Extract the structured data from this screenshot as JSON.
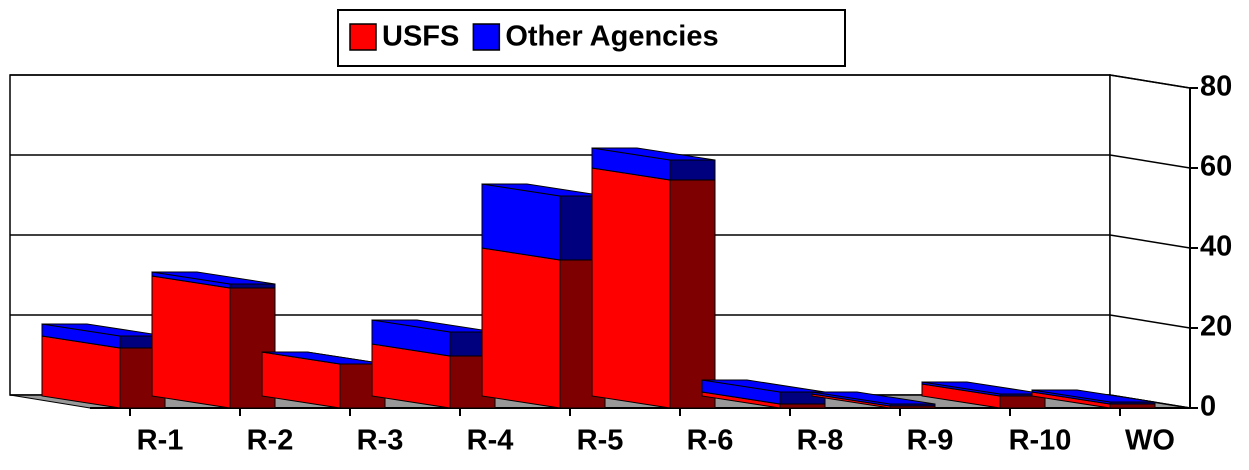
{
  "chart_data": {
    "type": "bar3d_stacked",
    "categories": [
      "R-1",
      "R-2",
      "R-3",
      "R-4",
      "R-5",
      "R-6",
      "R-8",
      "R-9",
      "R-10",
      "WO"
    ],
    "series": [
      {
        "name": "USFS",
        "color": "#ff0000",
        "values": [
          15,
          30,
          11,
          13,
          37,
          57,
          1,
          0.5,
          3,
          1
        ]
      },
      {
        "name": "Other Agencies",
        "color": "#0000ff",
        "values": [
          3,
          1,
          0,
          6,
          16,
          5,
          3,
          0.5,
          0.5,
          0.5
        ]
      }
    ],
    "ylim": [
      0,
      80
    ],
    "yticks": [
      0,
      20,
      40,
      60,
      80
    ],
    "grid": true,
    "legend": "top"
  }
}
